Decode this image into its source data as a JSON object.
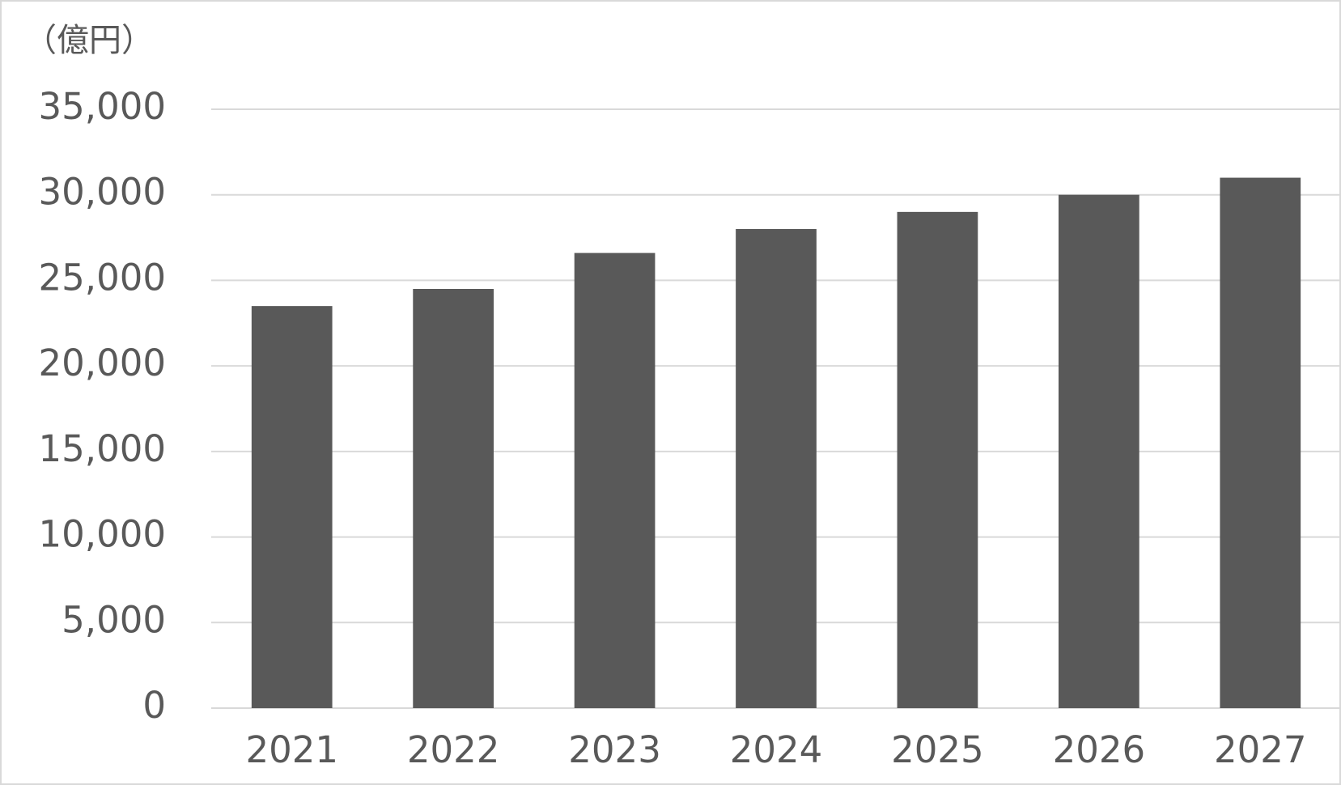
{
  "chart_data": {
    "type": "bar",
    "y_axis_label": "（億円）",
    "categories": [
      "2021",
      "2022",
      "2023",
      "2024",
      "2025",
      "2026",
      "2027"
    ],
    "values": [
      23500,
      24500,
      26600,
      28000,
      29000,
      30000,
      31000
    ],
    "color": "#595959",
    "ylim": [
      0,
      35000
    ],
    "yticks": [
      0,
      {
        "value": 5000,
        "label": "5,000"
      },
      {
        "value": 10000,
        "label": "10,000"
      },
      {
        "value": 15000,
        "label": "15,000"
      },
      {
        "value": 20000,
        "label": "20,000"
      },
      {
        "value": 25000,
        "label": "25,000"
      },
      {
        "value": 30000,
        "label": "30,000"
      },
      {
        "value": 35000,
        "label": "35,000"
      }
    ],
    "grid": true
  }
}
